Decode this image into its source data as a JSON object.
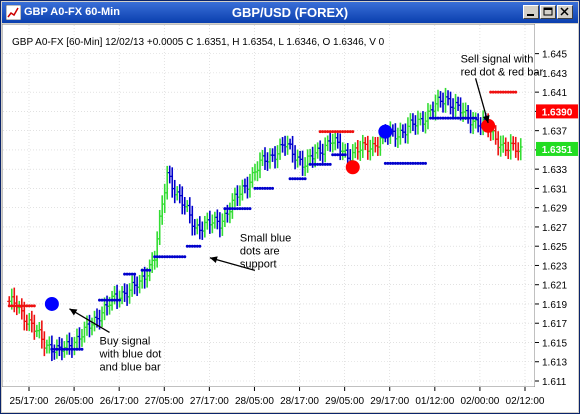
{
  "window": {
    "title": "GBP A0-FX 60-Min",
    "icon": "chart-app-icon",
    "buttons": [
      "minimize-icon",
      "maximize-icon",
      "close-icon"
    ]
  },
  "chart_data": {
    "type": "bar",
    "style": "ohlc",
    "title": "GBP/USD (FOREX)",
    "header": "GBP A0-FX [60-Min] 12/02/13 +0.0005 C 1.6351, H 1.6354, L 1.6346, O 1.6346, V 0",
    "ylim": [
      1.611,
      1.646
    ],
    "y_ticks": [
      1.611,
      1.613,
      1.615,
      1.617,
      1.619,
      1.621,
      1.623,
      1.625,
      1.627,
      1.629,
      1.631,
      1.633,
      1.635,
      1.637,
      1.639,
      1.641,
      1.643,
      1.645
    ],
    "x_ticks": [
      "25/17:00",
      "26/05:00",
      "26/17:00",
      "27/05:00",
      "27/17:00",
      "28/05:00",
      "28/17:00",
      "29/05:00",
      "29/17:00",
      "01/12:00",
      "02/00:00",
      "02/12:00"
    ],
    "grid": true,
    "price_labels": [
      {
        "value": "1.6390",
        "y": 1.639,
        "color": "#ff0000"
      },
      {
        "value": "1.6351",
        "y": 1.6351,
        "color": "#22dd22"
      }
    ],
    "colors": {
      "up": "#33dd33",
      "down": "#ee1111",
      "neutral": "#0000cc",
      "support": "#0000cc",
      "resistance": "#ee1111"
    },
    "anchors": [
      {
        "x": 3,
        "close": 1.619
      },
      {
        "x": 8,
        "close": 1.617
      },
      {
        "x": 14,
        "close": 1.615
      },
      {
        "x": 20,
        "close": 1.614
      },
      {
        "x": 30,
        "close": 1.616
      },
      {
        "x": 36,
        "close": 1.618
      },
      {
        "x": 44,
        "close": 1.62
      },
      {
        "x": 52,
        "close": 1.621
      },
      {
        "x": 58,
        "close": 1.624
      },
      {
        "x": 63,
        "close": 1.6325
      },
      {
        "x": 68,
        "close": 1.63
      },
      {
        "x": 74,
        "close": 1.627
      },
      {
        "x": 84,
        "close": 1.6275
      },
      {
        "x": 92,
        "close": 1.6305
      },
      {
        "x": 100,
        "close": 1.6335
      },
      {
        "x": 110,
        "close": 1.6355
      },
      {
        "x": 118,
        "close": 1.6335
      },
      {
        "x": 128,
        "close": 1.636
      },
      {
        "x": 135,
        "close": 1.6345
      },
      {
        "x": 145,
        "close": 1.6355
      },
      {
        "x": 150,
        "close": 1.6365
      },
      {
        "x": 158,
        "close": 1.637
      },
      {
        "x": 166,
        "close": 1.6385
      },
      {
        "x": 174,
        "close": 1.6405
      },
      {
        "x": 182,
        "close": 1.6385
      },
      {
        "x": 190,
        "close": 1.6375
      },
      {
        "x": 198,
        "close": 1.6351
      }
    ],
    "signals": [
      {
        "type": "buy",
        "x": 17,
        "y": 1.619
      },
      {
        "type": "sell",
        "x": 137,
        "y": 1.6332
      },
      {
        "type": "buy",
        "x": 150,
        "y": 1.6369
      },
      {
        "type": "sell",
        "x": 191,
        "y": 1.6375
      }
    ],
    "support_dots": [
      {
        "x0": 17,
        "x1": 29,
        "y": 1.6143
      },
      {
        "x0": 36,
        "x1": 44,
        "y": 1.6194
      },
      {
        "x0": 46,
        "x1": 50,
        "y": 1.6221
      },
      {
        "x0": 53,
        "x1": 56,
        "y": 1.6225
      },
      {
        "x0": 58,
        "x1": 70,
        "y": 1.6239
      },
      {
        "x0": 71,
        "x1": 76,
        "y": 1.625
      },
      {
        "x0": 86,
        "x1": 96,
        "y": 1.6289
      },
      {
        "x0": 98,
        "x1": 105,
        "y": 1.631
      },
      {
        "x0": 112,
        "x1": 118,
        "y": 1.632
      },
      {
        "x0": 120,
        "x1": 128,
        "y": 1.6335
      },
      {
        "x0": 129,
        "x1": 134,
        "y": 1.6345
      },
      {
        "x0": 150,
        "x1": 166,
        "y": 1.6336
      },
      {
        "x0": 168,
        "x1": 186,
        "y": 1.6383
      }
    ],
    "resistance_dots": [
      {
        "x0": 0,
        "x1": 10,
        "y": 1.6188
      },
      {
        "x0": 124,
        "x1": 137,
        "y": 1.6369
      },
      {
        "x0": 192,
        "x1": 202,
        "y": 1.641
      }
    ],
    "annotations": [
      {
        "lines": [
          "Buy signal",
          "with blue dot",
          "and blue bar"
        ],
        "tx": 36,
        "ty": 1.6148,
        "ax": 24,
        "ay": 1.6185
      },
      {
        "lines": [
          "Small blue",
          "dots are",
          "support"
        ],
        "tx": 92,
        "ty": 1.6255,
        "ax": 80,
        "ay": 1.6238
      },
      {
        "lines": [
          "Sell signal with",
          "red dot & red bar"
        ],
        "tx": 180,
        "ty": 1.6441,
        "ax": 191,
        "ay": 1.6378
      }
    ]
  }
}
